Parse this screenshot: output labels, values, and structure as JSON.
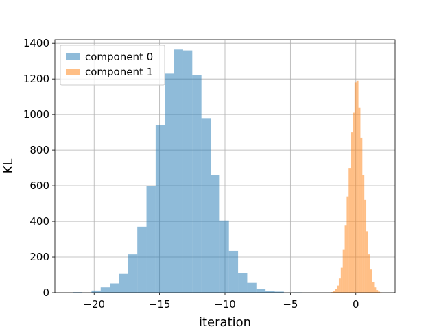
{
  "chart_data": {
    "type": "histogram",
    "title": "",
    "xlabel": "iteration",
    "ylabel": "KL",
    "xlim": [
      -23,
      3
    ],
    "ylim": [
      0,
      1420
    ],
    "xticks": [
      -20,
      -15,
      -10,
      -5,
      0
    ],
    "yticks": [
      0,
      200,
      400,
      600,
      800,
      1000,
      1200,
      1400
    ],
    "grid": true,
    "legend_position": "top-left",
    "series": [
      {
        "name": "component 0",
        "color": "#1f77b4",
        "alpha": 0.5,
        "bins": [
          {
            "x0": -21.6,
            "x1": -20.9,
            "count": 3
          },
          {
            "x0": -20.9,
            "x1": -20.2,
            "count": 0
          },
          {
            "x0": -20.2,
            "x1": -19.5,
            "count": 12
          },
          {
            "x0": -19.5,
            "x1": -18.8,
            "count": 30
          },
          {
            "x0": -18.8,
            "x1": -18.1,
            "count": 52
          },
          {
            "x0": -18.1,
            "x1": -17.4,
            "count": 105
          },
          {
            "x0": -17.4,
            "x1": -16.7,
            "count": 215
          },
          {
            "x0": -16.7,
            "x1": -16.0,
            "count": 370
          },
          {
            "x0": -16.0,
            "x1": -15.3,
            "count": 600
          },
          {
            "x0": -15.3,
            "x1": -14.6,
            "count": 940
          },
          {
            "x0": -14.6,
            "x1": -13.9,
            "count": 1230
          },
          {
            "x0": -13.9,
            "x1": -13.2,
            "count": 1365
          },
          {
            "x0": -13.2,
            "x1": -12.5,
            "count": 1360
          },
          {
            "x0": -12.5,
            "x1": -11.8,
            "count": 1220
          },
          {
            "x0": -11.8,
            "x1": -11.1,
            "count": 980
          },
          {
            "x0": -11.1,
            "x1": -10.4,
            "count": 660
          },
          {
            "x0": -10.4,
            "x1": -9.7,
            "count": 405
          },
          {
            "x0": -9.7,
            "x1": -9.0,
            "count": 235
          },
          {
            "x0": -9.0,
            "x1": -8.3,
            "count": 110
          },
          {
            "x0": -8.3,
            "x1": -7.6,
            "count": 55
          },
          {
            "x0": -7.6,
            "x1": -6.9,
            "count": 20
          },
          {
            "x0": -6.9,
            "x1": -6.2,
            "count": 10
          },
          {
            "x0": -6.2,
            "x1": -5.5,
            "count": 6
          },
          {
            "x0": -5.5,
            "x1": -4.8,
            "count": 0
          },
          {
            "x0": -4.8,
            "x1": -4.1,
            "count": 2
          }
        ]
      },
      {
        "name": "component 1",
        "color": "#ff7f0e",
        "alpha": 0.5,
        "bins": [
          {
            "x0": -1.9,
            "x1": -1.75,
            "count": 3
          },
          {
            "x0": -1.75,
            "x1": -1.6,
            "count": 8
          },
          {
            "x0": -1.6,
            "x1": -1.45,
            "count": 20
          },
          {
            "x0": -1.45,
            "x1": -1.3,
            "count": 40
          },
          {
            "x0": -1.3,
            "x1": -1.15,
            "count": 80
          },
          {
            "x0": -1.15,
            "x1": -1.0,
            "count": 140
          },
          {
            "x0": -1.0,
            "x1": -0.85,
            "count": 240
          },
          {
            "x0": -0.85,
            "x1": -0.7,
            "count": 380
          },
          {
            "x0": -0.7,
            "x1": -0.55,
            "count": 540
          },
          {
            "x0": -0.55,
            "x1": -0.4,
            "count": 700
          },
          {
            "x0": -0.4,
            "x1": -0.25,
            "count": 900
          },
          {
            "x0": -0.25,
            "x1": -0.1,
            "count": 1010
          },
          {
            "x0": -0.1,
            "x1": 0.05,
            "count": 1180
          },
          {
            "x0": 0.05,
            "x1": 0.2,
            "count": 1190
          },
          {
            "x0": 0.2,
            "x1": 0.35,
            "count": 1040
          },
          {
            "x0": 0.35,
            "x1": 0.5,
            "count": 870
          },
          {
            "x0": 0.5,
            "x1": 0.65,
            "count": 660
          },
          {
            "x0": 0.65,
            "x1": 0.8,
            "count": 520
          },
          {
            "x0": 0.8,
            "x1": 0.95,
            "count": 345
          },
          {
            "x0": 0.95,
            "x1": 1.1,
            "count": 215
          },
          {
            "x0": 1.1,
            "x1": 1.25,
            "count": 130
          },
          {
            "x0": 1.25,
            "x1": 1.4,
            "count": 60
          },
          {
            "x0": 1.4,
            "x1": 1.55,
            "count": 30
          },
          {
            "x0": 1.55,
            "x1": 1.7,
            "count": 15
          },
          {
            "x0": 1.7,
            "x1": 1.85,
            "count": 6
          },
          {
            "x0": 1.85,
            "x1": 2.0,
            "count": 2
          }
        ]
      }
    ]
  }
}
